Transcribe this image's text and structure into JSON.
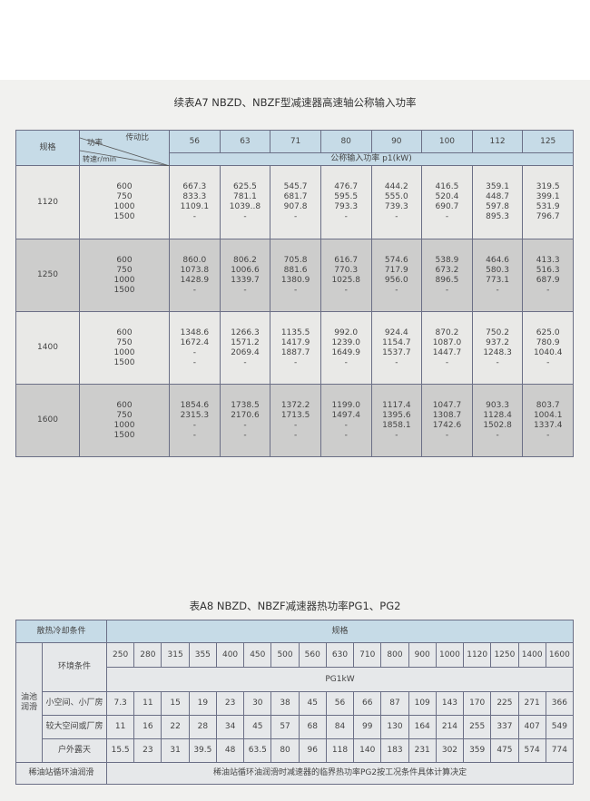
{
  "table_a7": {
    "title": "续表A7   NBZD、NBZF型减速器高速轴公称输入功率",
    "header": {
      "spec": "规格",
      "ratio_label": "传动比",
      "power_label": "功率",
      "speed_label": "转速r/min",
      "ratios": [
        "56",
        "63",
        "71",
        "80",
        "90",
        "100",
        "112",
        "125"
      ],
      "unit": "公称输入功率 p1(kW)"
    },
    "rows": [
      {
        "spec": "1120",
        "speeds": [
          "600",
          "750",
          "1000",
          "1500"
        ],
        "values": [
          [
            "667.3",
            "833.3",
            "1109.1",
            "-"
          ],
          [
            "625.5",
            "781.1",
            "1039..8",
            "-"
          ],
          [
            "545.7",
            "681.7",
            "907.8",
            "-"
          ],
          [
            "476.7",
            "595.5",
            "793.3",
            "-"
          ],
          [
            "444.2",
            "555.0",
            "739.3",
            "-"
          ],
          [
            "416.5",
            "520.4",
            "690.7",
            "-"
          ],
          [
            "359.1",
            "448.7",
            "597.8",
            "895.3"
          ],
          [
            "319.5",
            "399.1",
            "531.9",
            "796.7"
          ]
        ]
      },
      {
        "spec": "1250",
        "speeds": [
          "600",
          "750",
          "1000",
          "1500"
        ],
        "values": [
          [
            "860.0",
            "1073.8",
            "1428.9",
            "-"
          ],
          [
            "806.2",
            "1006.6",
            "1339.7",
            "-"
          ],
          [
            "705.8",
            "881.6",
            "1380.9",
            "-"
          ],
          [
            "616.7",
            "770.3",
            "1025.8",
            "-"
          ],
          [
            "574.6",
            "717.9",
            "956.0",
            "-"
          ],
          [
            "538.9",
            "673.2",
            "896.5",
            "-"
          ],
          [
            "464.6",
            "580.3",
            "773.1",
            "-"
          ],
          [
            "413.3",
            "516.3",
            "687.9",
            "-"
          ]
        ]
      },
      {
        "spec": "1400",
        "speeds": [
          "600",
          "750",
          "1000",
          "1500"
        ],
        "values": [
          [
            "1348.6",
            "1672.4",
            "-",
            "-"
          ],
          [
            "1266.3",
            "1571.2",
            "2069.4",
            "-"
          ],
          [
            "1135.5",
            "1417.9",
            "1887.7",
            "-"
          ],
          [
            "992.0",
            "1239.0",
            "1649.9",
            "-"
          ],
          [
            "924.4",
            "1154.7",
            "1537.7",
            "-"
          ],
          [
            "870.2",
            "1087.0",
            "1447.7",
            "-"
          ],
          [
            "750.2",
            "937.2",
            "1248.3",
            "-"
          ],
          [
            "625.0",
            "780.9",
            "1040.4",
            "-"
          ]
        ]
      },
      {
        "spec": "1600",
        "speeds": [
          "600",
          "750",
          "1000",
          "1500"
        ],
        "values": [
          [
            "1854.6",
            "2315.3",
            "-",
            "-"
          ],
          [
            "1738.5",
            "2170.6",
            "-",
            "-"
          ],
          [
            "1372.2",
            "1713.5",
            "-",
            "-"
          ],
          [
            "1199.0",
            "1497.4",
            "-",
            "-"
          ],
          [
            "1117.4",
            "1395.6",
            "1858.1",
            "-"
          ],
          [
            "1047.7",
            "1308.7",
            "1742.6",
            "-"
          ],
          [
            "903.3",
            "1128.4",
            "1502.8",
            "-"
          ],
          [
            "803.7",
            "1004.1",
            "1337.4",
            "-"
          ]
        ]
      }
    ]
  },
  "table_a8": {
    "title": "表A8   NBZD、NBZF减速器热功率PG1、PG2",
    "cooling_label": "散热冷却条件",
    "spec_label": "规格",
    "env_label": "环境条件",
    "oil_bath_label": "油池润滑",
    "sizes": [
      "250",
      "280",
      "315",
      "355",
      "400",
      "450",
      "500",
      "560",
      "630",
      "710",
      "800",
      "900",
      "1000",
      "1120",
      "1250",
      "1400",
      "1600"
    ],
    "unit": "PG1kW",
    "rows": [
      {
        "env": "小空间、小厂房",
        "values": [
          "7.3",
          "11",
          "15",
          "19",
          "23",
          "30",
          "38",
          "45",
          "56",
          "66",
          "87",
          "109",
          "143",
          "170",
          "225",
          "271",
          "366"
        ]
      },
      {
        "env": "较大空间或厂房",
        "values": [
          "11",
          "16",
          "22",
          "28",
          "34",
          "45",
          "57",
          "68",
          "84",
          "99",
          "130",
          "164",
          "214",
          "255",
          "337",
          "407",
          "549"
        ]
      },
      {
        "env": "户外露天",
        "values": [
          "15.5",
          "23",
          "31",
          "39.5",
          "48",
          "63.5",
          "80",
          "96",
          "118",
          "140",
          "183",
          "231",
          "302",
          "359",
          "475",
          "574",
          "774"
        ]
      }
    ],
    "circulation_label": "稀油站循环油润滑",
    "circulation_note": "稀油站循环油润滑时减速器的临界热功率PG2按工况条件具体计算决定"
  }
}
